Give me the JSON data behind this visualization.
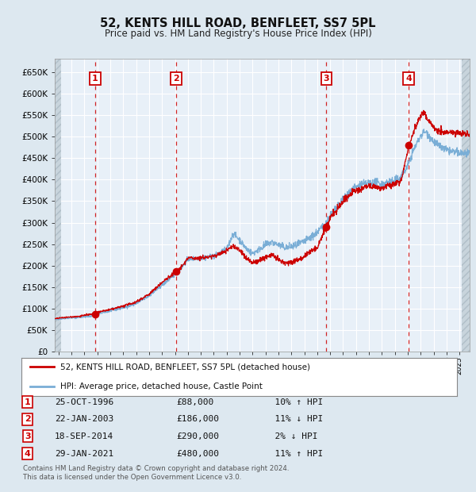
{
  "title": "52, KENTS HILL ROAD, BENFLEET, SS7 5PL",
  "subtitle": "Price paid vs. HM Land Registry's House Price Index (HPI)",
  "legend_line1": "52, KENTS HILL ROAD, BENFLEET, SS7 5PL (detached house)",
  "legend_line2": "HPI: Average price, detached house, Castle Point",
  "footer_line1": "Contains HM Land Registry data © Crown copyright and database right 2024.",
  "footer_line2": "This data is licensed under the Open Government Licence v3.0.",
  "purchases": [
    {
      "num": 1,
      "date": "25-OCT-1996",
      "price": 88000,
      "pct": "10%",
      "dir": "↑",
      "year": 1996.82
    },
    {
      "num": 2,
      "date": "22-JAN-2003",
      "price": 186000,
      "pct": "11%",
      "dir": "↓",
      "year": 2003.06
    },
    {
      "num": 3,
      "date": "18-SEP-2014",
      "price": 290000,
      "pct": "2%",
      "dir": "↓",
      "year": 2014.71
    },
    {
      "num": 4,
      "date": "29-JAN-2021",
      "price": 480000,
      "pct": "11%",
      "dir": "↑",
      "year": 2021.08
    }
  ],
  "red_line_color": "#cc0000",
  "blue_line_color": "#7aaed6",
  "bg_color": "#dde8f0",
  "plot_bg_color": "#e8f0f8",
  "grid_color": "#ffffff",
  "dashed_line_color": "#cc0000",
  "purchase_dot_color": "#cc0000",
  "box_color": "#cc0000",
  "ylim": [
    0,
    680000
  ],
  "yticks": [
    0,
    50000,
    100000,
    150000,
    200000,
    250000,
    300000,
    350000,
    400000,
    450000,
    500000,
    550000,
    600000,
    650000
  ],
  "xlim_start": 1993.7,
  "xlim_end": 2025.8,
  "hpi_anchors": [
    [
      1993.7,
      75000
    ],
    [
      1994.5,
      78000
    ],
    [
      1995.5,
      80000
    ],
    [
      1996.5,
      83000
    ],
    [
      1997.0,
      88000
    ],
    [
      1998.0,
      95000
    ],
    [
      1999.0,
      103000
    ],
    [
      2000.0,
      112000
    ],
    [
      2001.0,
      130000
    ],
    [
      2002.0,
      155000
    ],
    [
      2003.0,
      180000
    ],
    [
      2003.5,
      195000
    ],
    [
      2004.0,
      215000
    ],
    [
      2005.0,
      218000
    ],
    [
      2006.0,
      222000
    ],
    [
      2007.0,
      238000
    ],
    [
      2007.5,
      275000
    ],
    [
      2008.0,
      260000
    ],
    [
      2008.5,
      240000
    ],
    [
      2009.0,
      228000
    ],
    [
      2009.5,
      238000
    ],
    [
      2010.0,
      248000
    ],
    [
      2010.5,
      255000
    ],
    [
      2011.0,
      248000
    ],
    [
      2011.5,
      242000
    ],
    [
      2012.0,
      244000
    ],
    [
      2012.5,
      248000
    ],
    [
      2013.0,
      256000
    ],
    [
      2013.5,
      265000
    ],
    [
      2014.0,
      278000
    ],
    [
      2014.5,
      292000
    ],
    [
      2015.0,
      316000
    ],
    [
      2015.5,
      332000
    ],
    [
      2016.0,
      355000
    ],
    [
      2016.5,
      372000
    ],
    [
      2017.0,
      382000
    ],
    [
      2017.5,
      388000
    ],
    [
      2018.0,
      392000
    ],
    [
      2018.5,
      392000
    ],
    [
      2019.0,
      390000
    ],
    [
      2019.5,
      394000
    ],
    [
      2020.0,
      396000
    ],
    [
      2020.5,
      408000
    ],
    [
      2021.0,
      432000
    ],
    [
      2021.5,
      472000
    ],
    [
      2022.0,
      502000
    ],
    [
      2022.3,
      512000
    ],
    [
      2022.6,
      505000
    ],
    [
      2023.0,
      488000
    ],
    [
      2023.5,
      476000
    ],
    [
      2024.0,
      468000
    ],
    [
      2024.5,
      464000
    ],
    [
      2025.5,
      460000
    ],
    [
      2025.8,
      458000
    ]
  ],
  "red_anchors": [
    [
      1993.7,
      77000
    ],
    [
      1994.5,
      80000
    ],
    [
      1995.5,
      82000
    ],
    [
      1996.0,
      85000
    ],
    [
      1996.82,
      88000
    ],
    [
      1997.0,
      92000
    ],
    [
      1998.0,
      98000
    ],
    [
      1999.0,
      106000
    ],
    [
      2000.0,
      116000
    ],
    [
      2001.0,
      134000
    ],
    [
      2002.0,
      161000
    ],
    [
      2003.06,
      186000
    ],
    [
      2003.5,
      196000
    ],
    [
      2004.0,
      218000
    ],
    [
      2005.0,
      218000
    ],
    [
      2006.0,
      222000
    ],
    [
      2007.0,
      235000
    ],
    [
      2007.5,
      246000
    ],
    [
      2008.0,
      236000
    ],
    [
      2008.5,
      218000
    ],
    [
      2009.0,
      206000
    ],
    [
      2009.5,
      212000
    ],
    [
      2010.0,
      220000
    ],
    [
      2010.5,
      226000
    ],
    [
      2011.0,
      212000
    ],
    [
      2011.5,
      206000
    ],
    [
      2012.0,
      208000
    ],
    [
      2012.5,
      214000
    ],
    [
      2013.0,
      222000
    ],
    [
      2013.5,
      234000
    ],
    [
      2014.0,
      242000
    ],
    [
      2014.71,
      290000
    ],
    [
      2015.0,
      312000
    ],
    [
      2015.5,
      328000
    ],
    [
      2016.0,
      350000
    ],
    [
      2016.5,
      365000
    ],
    [
      2017.0,
      375000
    ],
    [
      2017.5,
      380000
    ],
    [
      2018.0,
      384000
    ],
    [
      2018.5,
      384000
    ],
    [
      2019.0,
      380000
    ],
    [
      2019.5,
      385000
    ],
    [
      2020.0,
      388000
    ],
    [
      2020.5,
      398000
    ],
    [
      2021.08,
      480000
    ],
    [
      2021.5,
      515000
    ],
    [
      2022.0,
      548000
    ],
    [
      2022.2,
      556000
    ],
    [
      2022.5,
      542000
    ],
    [
      2022.8,
      530000
    ],
    [
      2023.0,
      522000
    ],
    [
      2023.5,
      512000
    ],
    [
      2024.0,
      508000
    ],
    [
      2024.5,
      510000
    ],
    [
      2025.5,
      506000
    ],
    [
      2025.8,
      504000
    ]
  ]
}
